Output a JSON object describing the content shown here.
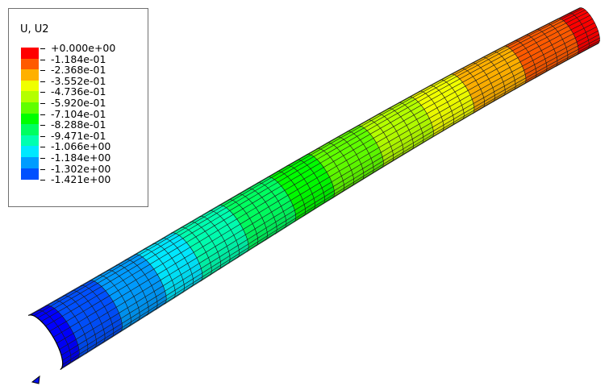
{
  "legend": {
    "title": "U, U2",
    "labels": [
      "+0.000e+00",
      "-1.184e-01",
      "-2.368e-01",
      "-3.552e-01",
      "-4.736e-01",
      "-5.920e-01",
      "-7.104e-01",
      "-8.288e-01",
      "-9.471e-01",
      "-1.066e+00",
      "-1.184e+00",
      "-1.302e+00",
      "-1.421e+00"
    ],
    "colors": [
      "#ff0000",
      "#ff5a00",
      "#ffb000",
      "#f0ff00",
      "#b4ff00",
      "#60ff00",
      "#00ff00",
      "#00ff60",
      "#00ffb0",
      "#00e8ff",
      "#009cff",
      "#0050ff",
      "#0000ff"
    ]
  },
  "model": {
    "description_field": "U2",
    "contour_min": -1.421,
    "contour_max": 0.0
  }
}
